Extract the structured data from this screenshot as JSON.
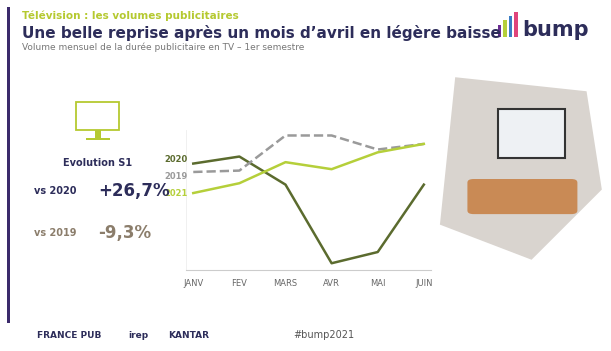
{
  "header": "Télévision : les volumes publicitaires",
  "logo": "bump",
  "kpi": {
    "title": "Evolution S1",
    "items": [
      {
        "label": "vs 2020",
        "value_label": "+26,7%"
      },
      {
        "label": "vs 2019",
        "value_label": "-9,3%"
      }
    ]
  },
  "footer": {
    "partners": [
      "FRANCE PUB",
      "irep",
      "KANTAR"
    ],
    "hashtag": "#bump2021"
  },
  "chart_data": {
    "type": "line",
    "title": "Une belle reprise après un mois d’avril en légère baisse",
    "subtitle": "Volume mensuel de la durée publicitaire en TV – 1er semestre",
    "categories": [
      "JANV",
      "FEV",
      "MARS",
      "AVR",
      "MAI",
      "JUIN"
    ],
    "ylim": [
      0,
      100
    ],
    "yticks": [],
    "tick_labels": "x",
    "grid": false,
    "series": [
      {
        "name": "2020",
        "color": "#5b6b2e",
        "line_style": "solid",
        "values": [
          76,
          81,
          61,
          5,
          13,
          61
        ]
      },
      {
        "name": "2019",
        "color": "#9a9a9a",
        "line_style": "dashed",
        "values": [
          70,
          71,
          96,
          96,
          86,
          90
        ]
      },
      {
        "name": "2021",
        "color": "#b5cf3a",
        "line_style": "solid",
        "values": [
          55,
          62,
          77,
          72,
          84,
          90
        ]
      }
    ]
  }
}
